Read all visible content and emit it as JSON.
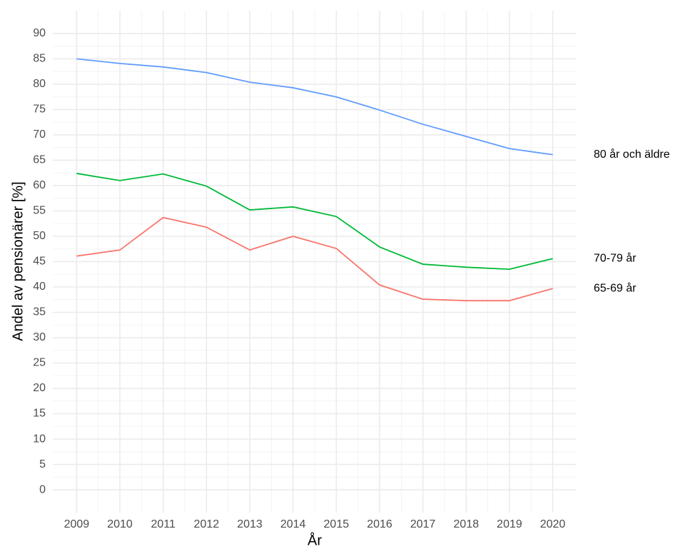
{
  "chart_data": {
    "type": "line",
    "x_label": "År",
    "y_label": "Andel av pensionärer [%]",
    "x": [
      2009,
      2010,
      2011,
      2012,
      2013,
      2014,
      2015,
      2016,
      2017,
      2018,
      2019,
      2020
    ],
    "series": [
      {
        "name": "80 år och äldre",
        "color": "#619CFF",
        "values": [
          85.0,
          84.1,
          83.4,
          82.3,
          80.4,
          79.3,
          77.5,
          74.9,
          72.1,
          69.7,
          67.3,
          66.1
        ]
      },
      {
        "name": "70-79 år",
        "color": "#00BA38",
        "values": [
          62.4,
          61.0,
          62.3,
          59.9,
          55.2,
          55.8,
          53.9,
          47.9,
          44.5,
          43.9,
          43.5,
          45.6
        ]
      },
      {
        "name": "65-69 år",
        "color": "#F8766D",
        "values": [
          46.1,
          47.3,
          53.7,
          51.8,
          47.3,
          50.0,
          47.6,
          40.4,
          37.6,
          37.3,
          37.3,
          39.7
        ]
      }
    ],
    "xlim": [
      2008.45,
      2020.55
    ],
    "xticks": [
      2009,
      2010,
      2011,
      2012,
      2013,
      2014,
      2015,
      2016,
      2017,
      2018,
      2019,
      2020
    ],
    "ylim": [
      -4.5,
      94.5
    ],
    "yticks": [
      0,
      5,
      10,
      15,
      20,
      25,
      30,
      35,
      40,
      45,
      50,
      55,
      60,
      65,
      70,
      75,
      80,
      85,
      90
    ],
    "grid": true
  }
}
